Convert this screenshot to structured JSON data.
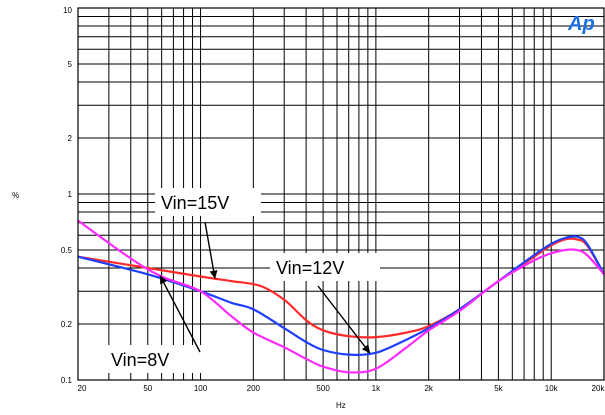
{
  "chart_data": {
    "type": "line",
    "title": "",
    "xlabel": "Hz",
    "ylabel": "%",
    "xscale": "log",
    "yscale": "log",
    "xlim": [
      20,
      20000
    ],
    "ylim": [
      0.1,
      10
    ],
    "grid": true,
    "x_ticks": [
      {
        "value": 20,
        "label": "20"
      },
      {
        "value": 50,
        "label": "50"
      },
      {
        "value": 100,
        "label": "100"
      },
      {
        "value": 200,
        "label": "200"
      },
      {
        "value": 500,
        "label": "500"
      },
      {
        "value": 1000,
        "label": "1k"
      },
      {
        "value": 2000,
        "label": "2k"
      },
      {
        "value": 5000,
        "label": "5k"
      },
      {
        "value": 10000,
        "label": "10k"
      },
      {
        "value": 20000,
        "label": "20k"
      }
    ],
    "y_ticks": [
      {
        "value": 0.1,
        "label": "0.1"
      },
      {
        "value": 0.2,
        "label": "0.2"
      },
      {
        "value": 0.5,
        "label": "0.5"
      },
      {
        "value": 1,
        "label": "1"
      },
      {
        "value": 2,
        "label": "2"
      },
      {
        "value": 5,
        "label": "5"
      },
      {
        "value": 10,
        "label": "10"
      }
    ],
    "series": [
      {
        "name": "Vin=15V",
        "color": "#ff2a2a",
        "x": [
          20,
          50,
          100,
          150,
          220,
          300,
          400,
          500,
          700,
          1000,
          1500,
          2000,
          3000,
          5000,
          8000,
          10000,
          12000,
          14000,
          16000,
          20000
        ],
        "y": [
          0.46,
          0.4,
          0.36,
          0.34,
          0.32,
          0.27,
          0.21,
          0.185,
          0.172,
          0.17,
          0.18,
          0.195,
          0.24,
          0.34,
          0.46,
          0.53,
          0.57,
          0.57,
          0.53,
          0.37
        ]
      },
      {
        "name": "Vin=12V",
        "color": "#1f3fff",
        "x": [
          20,
          50,
          100,
          150,
          200,
          300,
          400,
          500,
          700,
          1000,
          1500,
          2000,
          3000,
          5000,
          8000,
          10000,
          12000,
          14000,
          16000,
          20000
        ],
        "y": [
          0.46,
          0.37,
          0.3,
          0.26,
          0.24,
          0.19,
          0.16,
          0.145,
          0.137,
          0.14,
          0.165,
          0.19,
          0.24,
          0.34,
          0.47,
          0.54,
          0.58,
          0.59,
          0.54,
          0.37
        ]
      },
      {
        "name": "Vin=8V",
        "color": "#ff2aff",
        "x": [
          20,
          40,
          60,
          100,
          150,
          200,
          300,
          400,
          500,
          700,
          1000,
          1500,
          2000,
          3000,
          5000,
          8000,
          10000,
          12000,
          14000,
          16000,
          20000
        ],
        "y": [
          0.72,
          0.45,
          0.36,
          0.3,
          0.22,
          0.18,
          0.15,
          0.13,
          0.118,
          0.11,
          0.115,
          0.15,
          0.185,
          0.235,
          0.34,
          0.44,
          0.48,
          0.5,
          0.5,
          0.47,
          0.37
        ]
      }
    ],
    "annotations": [
      {
        "text": "Vin=15V",
        "series": "Vin=15V"
      },
      {
        "text": "Vin=12V",
        "series": "Vin=12V"
      },
      {
        "text": "Vin=8V",
        "series": "Vin=8V"
      }
    ]
  },
  "logo": {
    "text": "Ap",
    "color": "#1c6fe0"
  }
}
